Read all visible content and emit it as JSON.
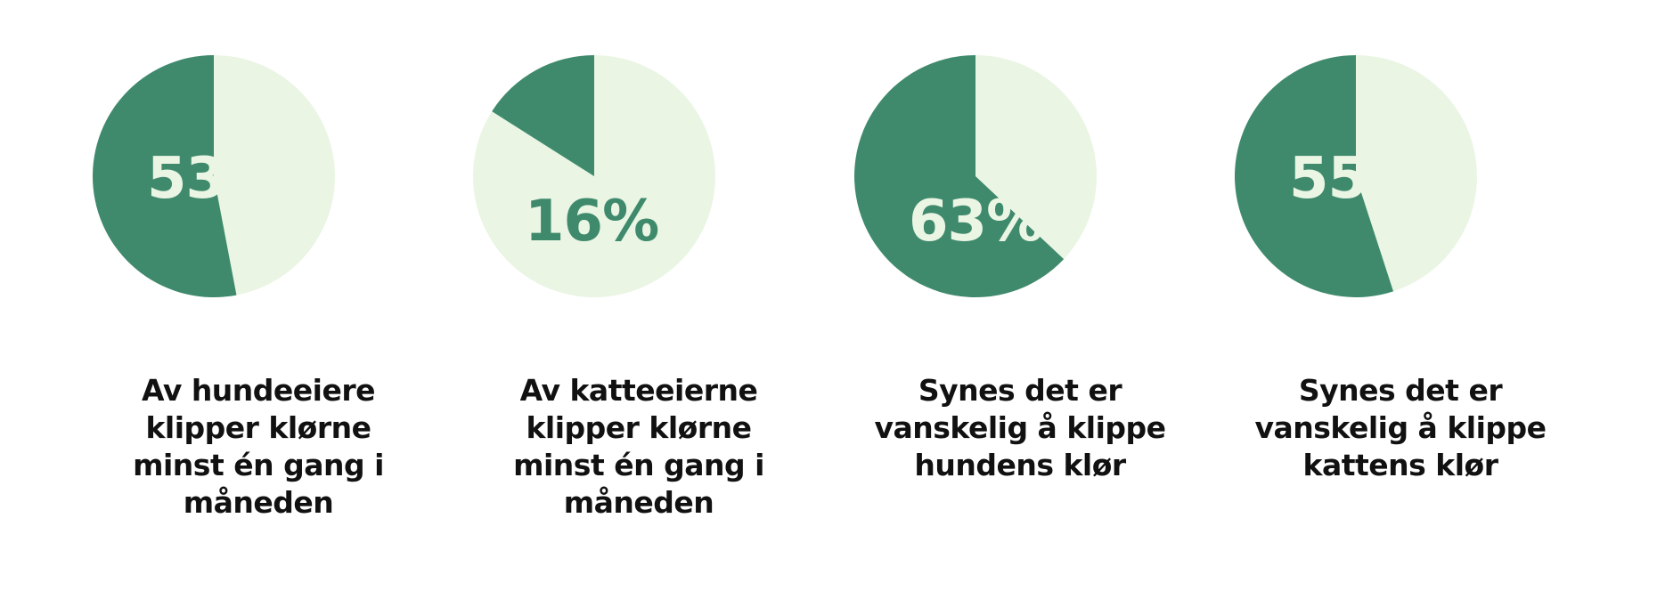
{
  "colors": {
    "dark": "#3f8a6c",
    "light": "#eaf5e4",
    "caption": "#111111"
  },
  "chart_data": [
    {
      "type": "pie",
      "values": [
        53,
        47
      ],
      "value_label": "53%",
      "caption_lines": [
        "Av hundeeiere",
        "klipper klørne",
        "minst én gang i",
        "måneden"
      ]
    },
    {
      "type": "pie",
      "values": [
        16,
        84
      ],
      "value_label": "16%",
      "caption_lines": [
        "Av katteeierne",
        "klipper klørne",
        "minst én gang i",
        "måneden"
      ]
    },
    {
      "type": "pie",
      "values": [
        63,
        37
      ],
      "value_label": "63%",
      "caption_lines": [
        "Synes det er",
        "vanskelig å klippe",
        "hundens klør"
      ]
    },
    {
      "type": "pie",
      "values": [
        55,
        45
      ],
      "value_label": "55%",
      "caption_lines": [
        "Synes det er",
        "vanskelig å klippe",
        "kattens klør"
      ]
    }
  ]
}
